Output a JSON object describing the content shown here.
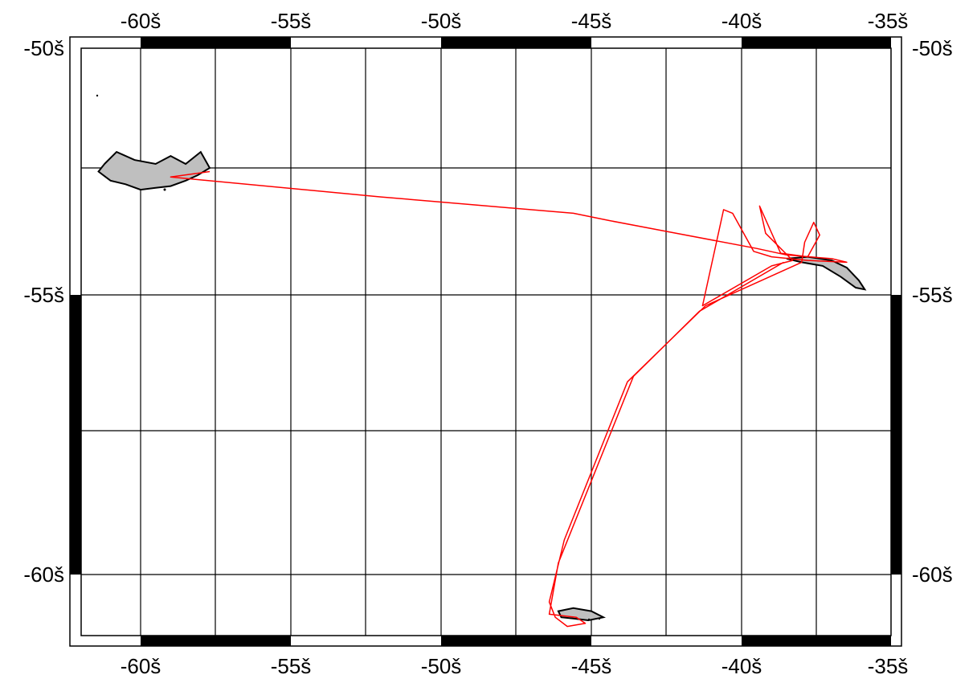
{
  "map": {
    "x_labels_top": [
      "-60š",
      "-55š",
      "-50š",
      "-45š",
      "-40š",
      "-35š"
    ],
    "x_labels_bottom": [
      "-60š",
      "-55š",
      "-50š",
      "-45š",
      "-40š",
      "-35š"
    ],
    "y_labels_left": [
      "-50š",
      "-55š",
      "-60š"
    ],
    "y_labels_right": [
      "-50š",
      "-55š",
      "-60š"
    ],
    "lon_range": [
      -62.3,
      -34.6
    ],
    "lat_range": [
      -61.2,
      -49.8
    ],
    "colors": {
      "track": "#ff0000",
      "land": "#bfbfbf",
      "coast": "#000000",
      "grid": "#000000"
    },
    "track_points": [
      [
        -57.7,
        -51.6
      ],
      [
        -59.0,
        -51.75
      ],
      [
        -52.0,
        -52.3
      ],
      [
        -45.6,
        -52.75
      ],
      [
        -44.4,
        -52.95
      ],
      [
        -42.5,
        -53.25
      ],
      [
        -39.5,
        -53.72
      ],
      [
        -38.5,
        -53.9
      ],
      [
        -37.0,
        -54.0
      ],
      [
        -36.5,
        -54.1
      ],
      [
        -37.8,
        -54.05
      ],
      [
        -39.0,
        -53.95
      ],
      [
        -39.6,
        -53.8
      ],
      [
        -40.3,
        -52.75
      ],
      [
        -40.6,
        -52.65
      ],
      [
        -41.3,
        -55.2
      ],
      [
        -39.0,
        -54.2
      ],
      [
        -38.3,
        -54.05
      ],
      [
        -39.2,
        -53.3
      ],
      [
        -39.4,
        -52.55
      ],
      [
        -38.7,
        -53.85
      ],
      [
        -37.8,
        -53.95
      ],
      [
        -37.4,
        -53.35
      ],
      [
        -37.6,
        -53.0
      ],
      [
        -37.9,
        -53.55
      ],
      [
        -38.0,
        -54.1
      ],
      [
        -41.2,
        -55.2
      ],
      [
        -43.8,
        -56.6
      ],
      [
        -45.9,
        -59.4
      ],
      [
        -46.4,
        -60.45
      ],
      [
        -46.2,
        -60.7
      ],
      [
        -45.8,
        -60.85
      ],
      [
        -45.2,
        -60.8
      ],
      [
        -45.5,
        -60.7
      ],
      [
        -46.4,
        -60.65
      ],
      [
        -46.1,
        -59.8
      ],
      [
        -43.6,
        -56.5
      ],
      [
        -41.4,
        -55.3
      ],
      [
        -38.6,
        -54.1
      ]
    ],
    "land_polygons": [
      [
        [
          -61.2,
          -51.45
        ],
        [
          -60.8,
          -51.3
        ],
        [
          -60.2,
          -51.4
        ],
        [
          -59.5,
          -51.45
        ],
        [
          -59.0,
          -51.35
        ],
        [
          -58.5,
          -51.45
        ],
        [
          -58.0,
          -51.3
        ],
        [
          -57.7,
          -51.5
        ],
        [
          -58.1,
          -51.7
        ],
        [
          -58.5,
          -51.85
        ],
        [
          -59.0,
          -52.0
        ],
        [
          -59.5,
          -52.05
        ],
        [
          -60.0,
          -52.1
        ],
        [
          -60.5,
          -51.95
        ],
        [
          -61.0,
          -51.85
        ],
        [
          -61.4,
          -51.6
        ]
      ],
      [
        [
          -38.5,
          -54.0
        ],
        [
          -37.8,
          -53.95
        ],
        [
          -37.0,
          -54.05
        ],
        [
          -36.5,
          -54.25
        ],
        [
          -36.1,
          -54.6
        ],
        [
          -35.9,
          -54.85
        ],
        [
          -36.2,
          -54.8
        ],
        [
          -36.7,
          -54.5
        ],
        [
          -37.3,
          -54.2
        ],
        [
          -38.0,
          -54.1
        ]
      ],
      [
        [
          -46.1,
          -60.6
        ],
        [
          -45.6,
          -60.55
        ],
        [
          -45.0,
          -60.6
        ],
        [
          -44.6,
          -60.7
        ],
        [
          -45.1,
          -60.75
        ],
        [
          -45.6,
          -60.72
        ],
        [
          -46.0,
          -60.7
        ]
      ]
    ]
  }
}
